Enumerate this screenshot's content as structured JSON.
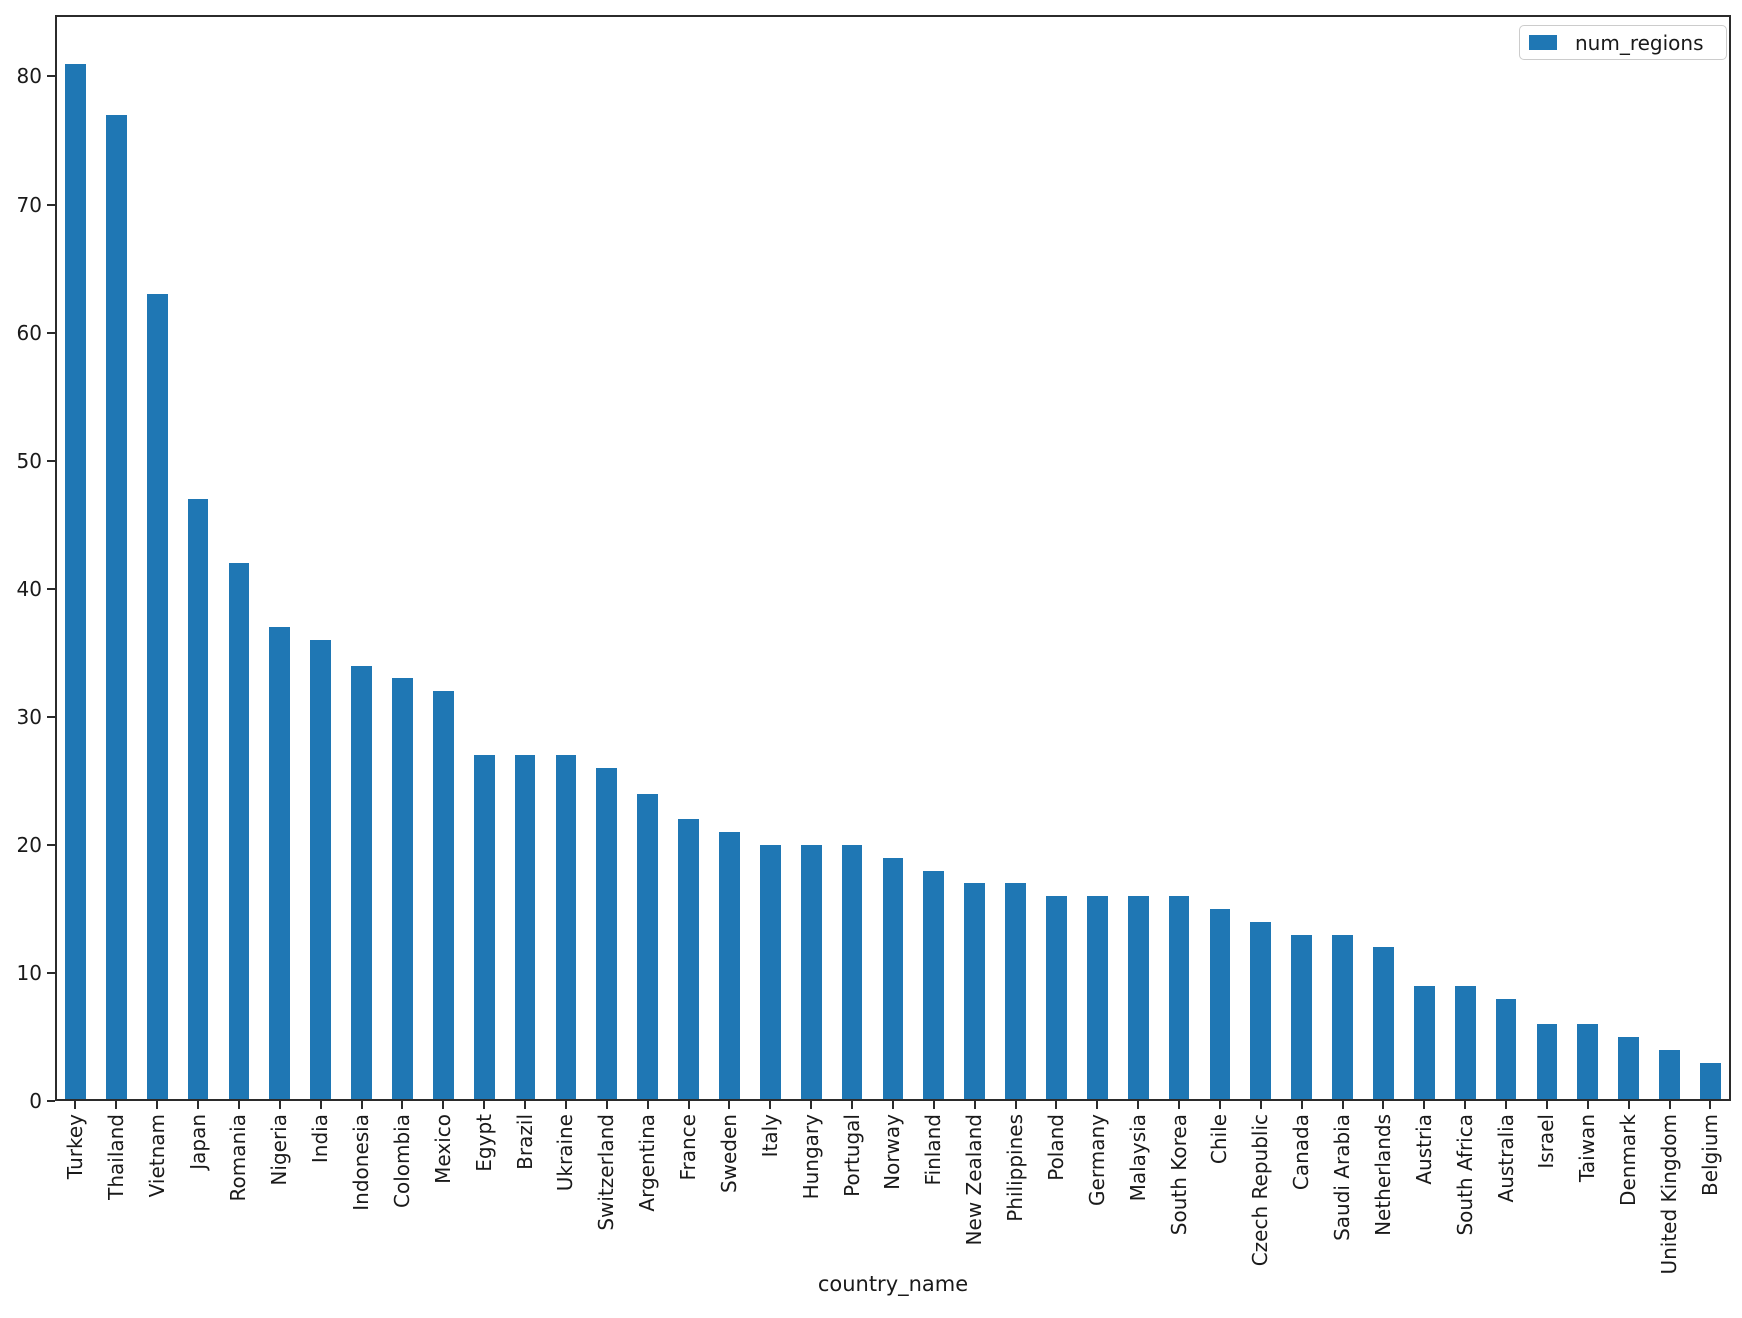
{
  "chart_data": {
    "type": "bar",
    "title": "",
    "xlabel": "country_name",
    "ylabel": "",
    "legend_label": "num_regions",
    "legend_position": "upper right",
    "bar_color": "#1f77b4",
    "axis_color": "#2b2b2b",
    "text_color": "#1a1a1a",
    "grid": false,
    "ylim": [
      0,
      84.8
    ],
    "yticks": [
      0,
      10,
      20,
      30,
      40,
      50,
      60,
      70,
      80
    ],
    "categories": [
      "Turkey",
      "Thailand",
      "Vietnam",
      "Japan",
      "Romania",
      "Nigeria",
      "India",
      "Indonesia",
      "Colombia",
      "Mexico",
      "Egypt",
      "Brazil",
      "Ukraine",
      "Switzerland",
      "Argentina",
      "France",
      "Sweden",
      "Italy",
      "Hungary",
      "Portugal",
      "Norway",
      "Finland",
      "New Zealand",
      "Philippines",
      "Poland",
      "Germany",
      "Malaysia",
      "South Korea",
      "Chile",
      "Czech Republic",
      "Canada",
      "Saudi Arabia",
      "Netherlands",
      "Austria",
      "South Africa",
      "Australia",
      "Israel",
      "Taiwan",
      "Denmark",
      "United Kingdom",
      "Belgium"
    ],
    "values": [
      81,
      77,
      63,
      47,
      42,
      37,
      36,
      34,
      33,
      32,
      27,
      27,
      27,
      26,
      24,
      22,
      21,
      20,
      20,
      20,
      19,
      18,
      17,
      17,
      16,
      16,
      16,
      16,
      15,
      14,
      13,
      13,
      12,
      9,
      9,
      8,
      6,
      6,
      5,
      4,
      3
    ]
  }
}
